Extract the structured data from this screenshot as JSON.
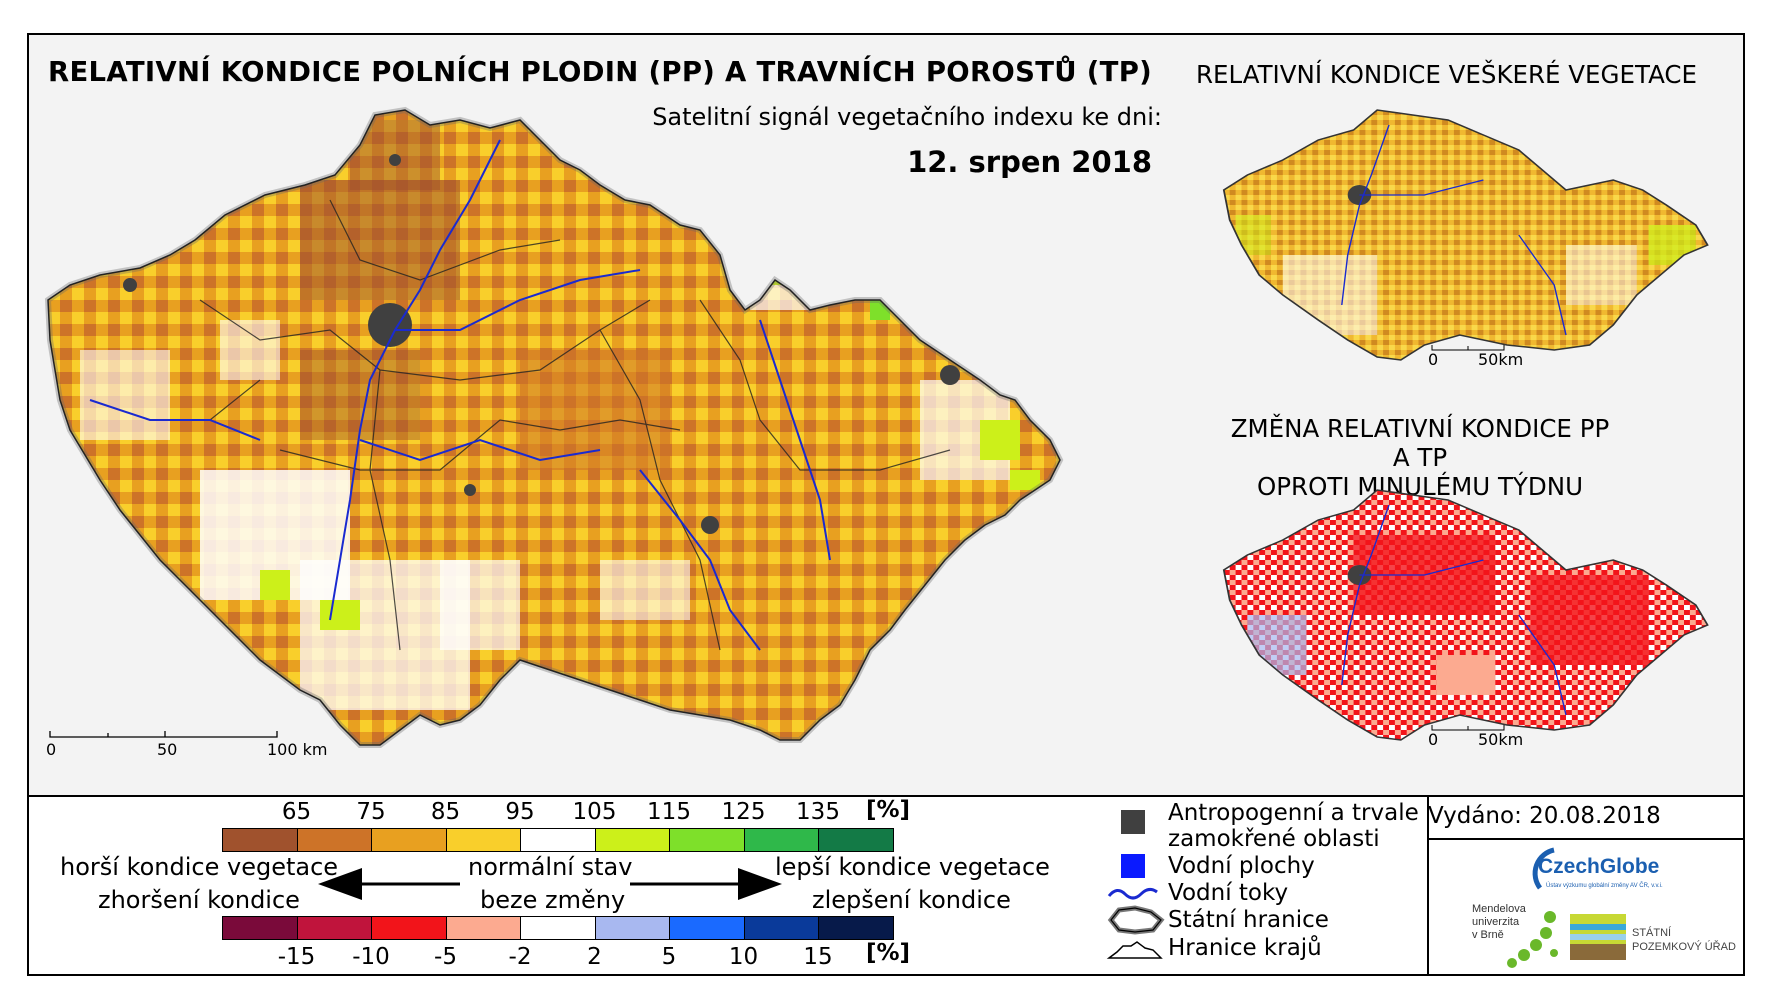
{
  "title": "RELATIVNÍ KONDICE POLNÍCH PLODIN (PP) A TRAVNÍCH POROSTŮ (TP)",
  "subtitle": "Satelitní signál vegetačního indexu ke dni:",
  "date": "12. srpen 2018",
  "right_top_title": "RELATIVNÍ KONDICE VEŠKERÉ VEGETACE",
  "right_bottom_title_line1": "ZMĚNA RELATIVNÍ KONDICE PP A TP",
  "right_bottom_title_line2": "OPROTI MINULÉMU TÝDNU",
  "main_scale": {
    "labels": [
      "0",
      "50",
      "100 km"
    ]
  },
  "small_scale": {
    "labels": [
      "0",
      "50km"
    ]
  },
  "condition_legend": {
    "ticks": [
      "65",
      "75",
      "85",
      "95",
      "105",
      "115",
      "125",
      "135"
    ],
    "unit": "[%]",
    "colors": [
      "#a0522d",
      "#cd7328",
      "#e8a020",
      "#f9cf2b",
      "#ffffff",
      "#ccf01a",
      "#7ee02a",
      "#2fb84a",
      "#137a46"
    ]
  },
  "change_legend": {
    "ticks": [
      "-15",
      "-10",
      "-5",
      "-2",
      "2",
      "5",
      "10",
      "15"
    ],
    "unit": "[%]",
    "colors": [
      "#7a0a3a",
      "#c0143c",
      "#f2141a",
      "#fcaa90",
      "#ffffff",
      "#a8b8f0",
      "#1a6aff",
      "#0a3a9a",
      "#071a4a"
    ]
  },
  "arrow_texts": {
    "worse_1": "horší kondice vegetace",
    "worse_2": "zhoršení kondice",
    "normal_1": "normální stav",
    "normal_2": "beze změny",
    "better_1": "lepší kondice vegetace",
    "better_2": "zlepšení kondice"
  },
  "map_legend": [
    {
      "icon": "urban-square-icon",
      "text": "Antropogenní a trvale zamokřené oblasti",
      "color": "#404040"
    },
    {
      "icon": "water-square-icon",
      "text": "Vodní plochy",
      "color": "#0a1aff"
    },
    {
      "icon": "river-line-icon",
      "text": "Vodní toky",
      "color": "#1a2ad0"
    },
    {
      "icon": "state-border-icon",
      "text": "Státní hranice"
    },
    {
      "icon": "region-border-icon",
      "text": "Hranice krajů"
    }
  ],
  "issued": "Vydáno: 20.08.2018",
  "logos": {
    "czechglobe": "CzechGlobe",
    "czechglobe_sub": "Ústav výzkumu globální změny AV ČR, v.v.i.",
    "mendel_1": "Mendelova",
    "mendel_2": "univerzita",
    "mendel_3": "v Brně",
    "spu_1": "STÁTNÍ",
    "spu_2": "POZEMKOVÝ ÚŘAD"
  }
}
